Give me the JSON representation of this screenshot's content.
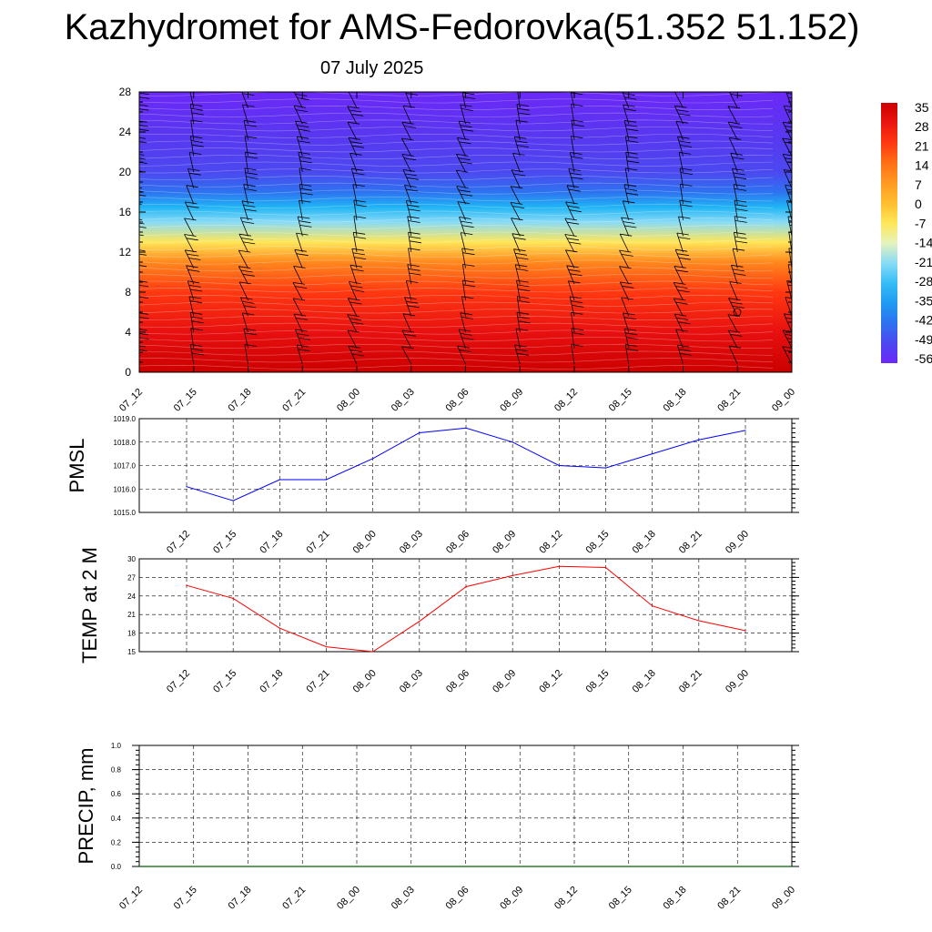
{
  "title": "Kazhydromet for AMS-Fedorovka(51.352 51.152)",
  "subtitle": "07 July 2025",
  "colors": {
    "pmsl_line": "#0000ff",
    "temp_line": "#ff0000",
    "precip_line": "#006400",
    "grid": "#000000"
  },
  "chart_data": [
    {
      "type": "heatmap",
      "name": "cross-section",
      "x": [
        "07_12",
        "07_15",
        "07_18",
        "07_21",
        "08_00",
        "08_03",
        "08_06",
        "08_09",
        "08_12",
        "08_15",
        "08_18",
        "08_21",
        "09_00"
      ],
      "y_ticks": [
        0,
        4,
        8,
        12,
        16,
        20,
        24,
        28
      ],
      "ylim": [
        0,
        28
      ],
      "colorbar_labels": [
        "35",
        "28",
        "21",
        "14",
        "7",
        "0",
        "-7",
        "-14",
        "-21",
        "-28",
        "-35",
        "-42",
        "-49",
        "-56"
      ],
      "levels": [
        {
          "y": 0,
          "value": 35
        },
        {
          "y": 4,
          "value": 29
        },
        {
          "y": 8,
          "value": 21
        },
        {
          "y": 11,
          "value": 10
        },
        {
          "y": 13,
          "value": -7
        },
        {
          "y": 15,
          "value": -21
        },
        {
          "y": 16.5,
          "value": -30
        },
        {
          "y": 18,
          "value": -42
        },
        {
          "y": 20,
          "value": -49
        },
        {
          "y": 24,
          "value": -52
        },
        {
          "y": 28,
          "value": -56
        }
      ],
      "overlay": "wind barbs"
    },
    {
      "type": "line",
      "name": "pmsl",
      "ylabel": "PMSL",
      "x": [
        "07_12",
        "07_15",
        "07_18",
        "07_21",
        "08_00",
        "08_03",
        "08_06",
        "08_09",
        "08_12",
        "08_15",
        "08_18",
        "08_21",
        "09_00"
      ],
      "values": [
        1016.1,
        1015.5,
        1016.4,
        1016.4,
        1017.3,
        1018.4,
        1018.6,
        1018.0,
        1017.0,
        1016.9,
        1017.5,
        1018.1,
        1018.5
      ],
      "ylim": [
        1015.0,
        1019.0
      ],
      "y_ticks": [
        "1015.0",
        "1016.0",
        "1017.0",
        "1018.0",
        "1019.0"
      ],
      "grid": true
    },
    {
      "type": "line",
      "name": "temp",
      "ylabel": "TEMP at 2 M",
      "x": [
        "07_12",
        "07_15",
        "07_18",
        "07_21",
        "08_00",
        "08_03",
        "08_06",
        "08_09",
        "08_12",
        "08_15",
        "08_18",
        "08_21",
        "09_00"
      ],
      "values": [
        25.7,
        23.6,
        18.8,
        15.8,
        15.0,
        19.9,
        25.5,
        27.3,
        28.8,
        28.6,
        22.4,
        20.0,
        18.4
      ],
      "ylim": [
        15,
        30
      ],
      "y_ticks": [
        "15",
        "18",
        "21",
        "24",
        "27",
        "30"
      ],
      "grid": true
    },
    {
      "type": "line",
      "name": "precip",
      "ylabel": "PRECIP, mm",
      "x": [
        "07_12",
        "07_15",
        "07_18",
        "07_21",
        "08_00",
        "08_03",
        "08_06",
        "08_09",
        "08_12",
        "08_15",
        "08_18",
        "08_21",
        "09_00"
      ],
      "values": [
        0,
        0,
        0,
        0,
        0,
        0,
        0,
        0,
        0,
        0,
        0,
        0,
        0
      ],
      "ylim": [
        0,
        1
      ],
      "y_ticks": [
        "0.0",
        "0.2",
        "0.4",
        "0.6",
        "0.8",
        "1.0"
      ],
      "grid": true
    }
  ]
}
